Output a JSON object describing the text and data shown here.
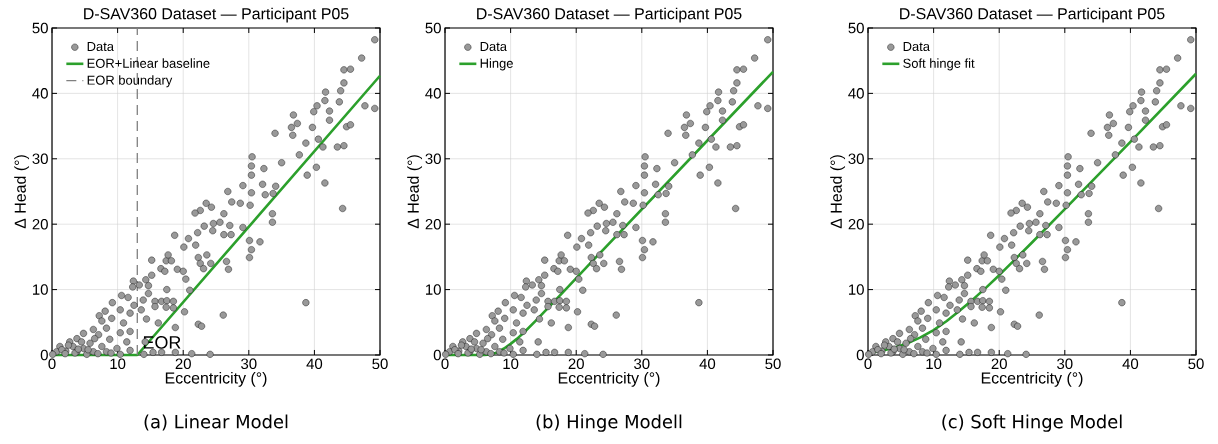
{
  "chart_data": [
    {
      "type": "scatter",
      "title": "D-SAV360 Dataset — Participant P05",
      "xlabel": "Eccentricity (°)",
      "ylabel": "Δ Head (°)",
      "xlim": [
        0,
        50
      ],
      "ylim": [
        0,
        50
      ],
      "xticks": [
        0,
        10,
        20,
        30,
        40,
        50
      ],
      "yticks": [
        0,
        10,
        20,
        30,
        40,
        50
      ],
      "grid": true,
      "legend": "top left",
      "annotations": [
        "(a) Linear Model",
        {
          "text": "EOR",
          "x": 13,
          "y": 0
        }
      ],
      "series": [
        {
          "name": "Data",
          "marker": "circle",
          "color": "#999999",
          "x": [
            49.2,
            47.2,
            44.5,
            45.5,
            44.5,
            41.7,
            44.0,
            41.6,
            43.8,
            40.4,
            39.9,
            42.3,
            47.7,
            49.2,
            36.8,
            37.4,
            36.5,
            39.7,
            42.3,
            44.9,
            45.5,
            34.0,
            36.7,
            40.6,
            38.7,
            41.3,
            43.5,
            44.5,
            37.7,
            30.5,
            30.4,
            32.3,
            35.0,
            30.4,
            40.3,
            38.9,
            41.6,
            32.1,
            29.1,
            34.1,
            26.8,
            30.4,
            32.5,
            33.7,
            27.4,
            28.7,
            23.5,
            24.3,
            30.2,
            44.3,
            22.6,
            21.8,
            26.2,
            33.6,
            33.6,
            24.6,
            23.2,
            25.6,
            27.1,
            24.5,
            22.2,
            26.2,
            27.3,
            29.1,
            18.7,
            20.8,
            30.1,
            31.7,
            21.9,
            20.1,
            30.4,
            30.1,
            23.6,
            22.3,
            15.2,
            17.4,
            17.7,
            18.2,
            22.6,
            24.2,
            26.6,
            23.1,
            26.9,
            16.6,
            19.1,
            20.0,
            17.2,
            15.2,
            20.4,
            12.4,
            14.3,
            13.3,
            14.7,
            12.3,
            21.0,
            17.5,
            14.7,
            10.6,
            11.6,
            9.2,
            13.9,
            15.7,
            16.7,
            17.5,
            18.5,
            12.5,
            15.7,
            17.4,
            18.5,
            38.7,
            8.1,
            10.4,
            13.6,
            7.2,
            9.1,
            11.9,
            14.4,
            20.2,
            26.1,
            7.6,
            10.9,
            16.2,
            6.3,
            8.3,
            10.4,
            11.9,
            18.8,
            22.3,
            22.8,
            4.8,
            7.1,
            3.8,
            8.8,
            11.4,
            14.2,
            2.7,
            5.8,
            1.2,
            3.2,
            4.8,
            7.6,
            9.9,
            0.7,
            2.1,
            3.8,
            6.3,
            8.3,
            11.9,
            15.4,
            16.7,
            18.8,
            21.3,
            24.1,
            0.1,
            5.3,
            10.4,
            14.0,
            1.5,
            2.5,
            3.5,
            4.5,
            5.5,
            6.5,
            7.0,
            9.0,
            2.0,
            4.0
          ],
          "values": [
            48.2,
            45.4,
            43.6,
            43.7,
            41.6,
            40.2,
            40.4,
            38.9,
            38.7,
            38.1,
            37.2,
            37.3,
            38.1,
            37.7,
            36.7,
            35.4,
            34.8,
            34.8,
            35.9,
            34.9,
            35.2,
            33.9,
            33.6,
            33.0,
            32.4,
            31.8,
            31.8,
            32.0,
            30.6,
            30.3,
            28.9,
            28.5,
            29.4,
            27.5,
            28.7,
            27.5,
            26.3,
            26.1,
            25.9,
            25.8,
            25.0,
            24.8,
            24.5,
            24.7,
            23.4,
            23.2,
            23.2,
            22.6,
            22.9,
            22.4,
            22.1,
            21.7,
            21.6,
            21.6,
            20.3,
            20.1,
            19.7,
            20.3,
            19.8,
            19.0,
            18.7,
            18.4,
            18.4,
            19.5,
            18.3,
            17.8,
            17.5,
            17.3,
            16.8,
            16.5,
            16.1,
            14.9,
            15.3,
            14.9,
            14.5,
            14.4,
            15.3,
            14.4,
            14.0,
            14.0,
            14.3,
            13.2,
            13.1,
            13.2,
            13.1,
            12.8,
            12.8,
            12.2,
            11.6,
            11.3,
            11.5,
            10.7,
            10.6,
            10.4,
            9.9,
            10.0,
            9.4,
            9.1,
            8.8,
            8.0,
            8.4,
            8.2,
            8.2,
            8.3,
            8.2,
            7.6,
            7.4,
            7.3,
            7.2,
            8.0,
            6.7,
            6.9,
            6.9,
            6.0,
            5.6,
            6.4,
            5.5,
            6.6,
            6.1,
            5.2,
            4.9,
            4.9,
            3.9,
            4.1,
            3.4,
            3.6,
            4.2,
            4.7,
            4.4,
            3.3,
            3.1,
            2.5,
            2.4,
            2.0,
            2.0,
            2.0,
            1.8,
            1.3,
            1.3,
            1.0,
            1.3,
            1.0,
            0.5,
            0.6,
            0.5,
            0.5,
            0.5,
            0.7,
            0.4,
            0.4,
            0.4,
            0.2,
            0.1,
            0.1,
            0.1,
            0.1,
            0.1,
            0.8,
            1.5,
            0.3,
            2.0,
            0.8,
            2.5,
            0.2,
            0.3,
            0.2,
            0.9
          ]
        },
        {
          "name": "EOR+Linear baseline",
          "type": "line",
          "color": "#2ca02c",
          "x": [
            0,
            13,
            50
          ],
          "values": [
            0,
            0,
            42.7
          ]
        },
        {
          "name": "EOR boundary",
          "type": "line",
          "line_style": "dashed",
          "color": "#808080",
          "x": [
            13,
            13
          ],
          "values": [
            0,
            50
          ]
        }
      ]
    },
    {
      "type": "scatter",
      "title": "D-SAV360 Dataset — Participant P05",
      "xlabel": "Eccentricity (°)",
      "ylabel": "Δ Head (°)",
      "xlim": [
        0,
        50
      ],
      "ylim": [
        0,
        50
      ],
      "xticks": [
        0,
        10,
        20,
        30,
        40,
        50
      ],
      "yticks": [
        0,
        10,
        20,
        30,
        40,
        50
      ],
      "grid": true,
      "legend": "top left",
      "annotations": [
        "(b) Hinge Modell"
      ],
      "series": [
        {
          "name": "Data",
          "marker": "circle",
          "color": "#999999",
          "x": [
            49.2,
            47.2,
            44.5,
            45.5,
            44.5,
            41.7,
            44.0,
            41.6,
            43.8,
            40.4,
            39.9,
            42.3,
            47.7,
            49.2,
            36.8,
            37.4,
            36.5,
            39.7,
            42.3,
            44.9,
            45.5,
            34.0,
            36.7,
            40.6,
            38.7,
            41.3,
            43.5,
            44.5,
            37.7,
            30.5,
            30.4,
            32.3,
            35.0,
            30.4,
            40.3,
            38.9,
            41.6,
            32.1,
            29.1,
            34.1,
            26.8,
            30.4,
            32.5,
            33.7,
            27.4,
            28.7,
            23.5,
            24.3,
            30.2,
            44.3,
            22.6,
            21.8,
            26.2,
            33.6,
            33.6,
            24.6,
            23.2,
            25.6,
            27.1,
            24.5,
            22.2,
            26.2,
            27.3,
            29.1,
            18.7,
            20.8,
            30.1,
            31.7,
            21.9,
            20.1,
            30.4,
            30.1,
            23.6,
            22.3,
            15.2,
            17.4,
            17.7,
            18.2,
            22.6,
            24.2,
            26.6,
            23.1,
            26.9,
            16.6,
            19.1,
            20.0,
            17.2,
            15.2,
            20.4,
            12.4,
            14.3,
            13.3,
            14.7,
            12.3,
            21.0,
            17.5,
            14.7,
            10.6,
            11.6,
            9.2,
            13.9,
            15.7,
            16.7,
            17.5,
            18.5,
            12.5,
            15.7,
            17.4,
            18.5,
            38.7,
            8.1,
            10.4,
            13.6,
            7.2,
            9.1,
            11.9,
            14.4,
            20.2,
            26.1,
            7.6,
            10.9,
            16.2,
            6.3,
            8.3,
            10.4,
            11.9,
            18.8,
            22.3,
            22.8,
            4.8,
            7.1,
            3.8,
            8.8,
            11.4,
            14.2,
            2.7,
            5.8,
            1.2,
            3.2,
            4.8,
            7.6,
            9.9,
            0.7,
            2.1,
            3.8,
            6.3,
            8.3,
            11.9,
            15.4,
            16.7,
            18.8,
            21.3,
            24.1,
            0.1,
            5.3,
            10.4,
            14.0,
            1.5,
            2.5,
            3.5,
            4.5,
            5.5,
            6.5,
            7.0,
            9.0,
            2.0,
            4.0
          ],
          "values": [
            48.2,
            45.4,
            43.6,
            43.7,
            41.6,
            40.2,
            40.4,
            38.9,
            38.7,
            38.1,
            37.2,
            37.3,
            38.1,
            37.7,
            36.7,
            35.4,
            34.8,
            34.8,
            35.9,
            34.9,
            35.2,
            33.9,
            33.6,
            33.0,
            32.4,
            31.8,
            31.8,
            32.0,
            30.6,
            30.3,
            28.9,
            28.5,
            29.4,
            27.5,
            28.7,
            27.5,
            26.3,
            26.1,
            25.9,
            25.8,
            25.0,
            24.8,
            24.5,
            24.7,
            23.4,
            23.2,
            23.2,
            22.6,
            22.9,
            22.4,
            22.1,
            21.7,
            21.6,
            21.6,
            20.3,
            20.1,
            19.7,
            20.3,
            19.8,
            19.0,
            18.7,
            18.4,
            18.4,
            19.5,
            18.3,
            17.8,
            17.5,
            17.3,
            16.8,
            16.5,
            16.1,
            14.9,
            15.3,
            14.9,
            14.5,
            14.4,
            15.3,
            14.4,
            14.0,
            14.0,
            14.3,
            13.2,
            13.1,
            13.2,
            13.1,
            12.8,
            12.8,
            12.2,
            11.6,
            11.3,
            11.5,
            10.7,
            10.6,
            10.4,
            9.9,
            10.0,
            9.4,
            9.1,
            8.8,
            8.0,
            8.4,
            8.2,
            8.2,
            8.3,
            8.2,
            7.6,
            7.4,
            7.3,
            7.2,
            8.0,
            6.7,
            6.9,
            6.9,
            6.0,
            5.6,
            6.4,
            5.5,
            6.6,
            6.1,
            5.2,
            4.9,
            4.9,
            3.9,
            4.1,
            3.4,
            3.6,
            4.2,
            4.7,
            4.4,
            3.3,
            3.1,
            2.5,
            2.4,
            2.0,
            2.0,
            2.0,
            1.8,
            1.3,
            1.3,
            1.0,
            1.3,
            1.0,
            0.5,
            0.6,
            0.5,
            0.5,
            0.5,
            0.7,
            0.4,
            0.4,
            0.4,
            0.2,
            0.1,
            0.1,
            0.1,
            0.1,
            0.1,
            0.8,
            1.5,
            0.3,
            2.0,
            0.8,
            2.5,
            0.2,
            0.3,
            0.2,
            0.9
          ]
        },
        {
          "name": "Hinge",
          "type": "line",
          "color": "#2ca02c",
          "x": [
            0,
            6,
            7,
            8,
            9,
            10,
            11,
            12,
            14,
            18,
            22.6,
            50
          ],
          "values": [
            0,
            0,
            0.1,
            0.4,
            1.0,
            1.7,
            2.5,
            3.4,
            5.4,
            9.6,
            14.5,
            43.3
          ]
        }
      ]
    },
    {
      "type": "scatter",
      "title": "D-SAV360 Dataset — Participant P05",
      "xlabel": "Eccentricity (°)",
      "ylabel": "Δ Head (°)",
      "xlim": [
        0,
        50
      ],
      "ylim": [
        0,
        50
      ],
      "xticks": [
        0,
        10,
        20,
        30,
        40,
        50
      ],
      "yticks": [
        0,
        10,
        20,
        30,
        40,
        50
      ],
      "grid": true,
      "legend": "top left",
      "annotations": [
        "(c) Soft Hinge Model"
      ],
      "series": [
        {
          "name": "Data",
          "marker": "circle",
          "color": "#999999",
          "x": [
            49.2,
            47.2,
            44.5,
            45.5,
            44.5,
            41.7,
            44.0,
            41.6,
            43.8,
            40.4,
            39.9,
            42.3,
            47.7,
            49.2,
            36.8,
            37.4,
            36.5,
            39.7,
            42.3,
            44.9,
            45.5,
            34.0,
            36.7,
            40.6,
            38.7,
            41.3,
            43.5,
            44.5,
            37.7,
            30.5,
            30.4,
            32.3,
            35.0,
            30.4,
            40.3,
            38.9,
            41.6,
            32.1,
            29.1,
            34.1,
            26.8,
            30.4,
            32.5,
            33.7,
            27.4,
            28.7,
            23.5,
            24.3,
            30.2,
            44.3,
            22.6,
            21.8,
            26.2,
            33.6,
            33.6,
            24.6,
            23.2,
            25.6,
            27.1,
            24.5,
            22.2,
            26.2,
            27.3,
            29.1,
            18.7,
            20.8,
            30.1,
            31.7,
            21.9,
            20.1,
            30.4,
            30.1,
            23.6,
            22.3,
            15.2,
            17.4,
            17.7,
            18.2,
            22.6,
            24.2,
            26.6,
            23.1,
            26.9,
            16.6,
            19.1,
            20.0,
            17.2,
            15.2,
            20.4,
            12.4,
            14.3,
            13.3,
            14.7,
            12.3,
            21.0,
            17.5,
            14.7,
            10.6,
            11.6,
            9.2,
            13.9,
            15.7,
            16.7,
            17.5,
            18.5,
            12.5,
            15.7,
            17.4,
            18.5,
            38.7,
            8.1,
            10.4,
            13.6,
            7.2,
            9.1,
            11.9,
            14.4,
            20.2,
            26.1,
            7.6,
            10.9,
            16.2,
            6.3,
            8.3,
            10.4,
            11.9,
            18.8,
            22.3,
            22.8,
            4.8,
            7.1,
            3.8,
            8.8,
            11.4,
            14.2,
            2.7,
            5.8,
            1.2,
            3.2,
            4.8,
            7.6,
            9.9,
            0.7,
            2.1,
            3.8,
            6.3,
            8.3,
            11.9,
            15.4,
            16.7,
            18.8,
            21.3,
            24.1,
            0.1,
            5.3,
            10.4,
            14.0,
            1.5,
            2.5,
            3.5,
            4.5,
            5.5,
            6.5,
            7.0,
            9.0,
            2.0,
            4.0
          ],
          "values": [
            48.2,
            45.4,
            43.6,
            43.7,
            41.6,
            40.2,
            40.4,
            38.9,
            38.7,
            38.1,
            37.2,
            37.3,
            38.1,
            37.7,
            36.7,
            35.4,
            34.8,
            34.8,
            35.9,
            34.9,
            35.2,
            33.9,
            33.6,
            33.0,
            32.4,
            31.8,
            31.8,
            32.0,
            30.6,
            30.3,
            28.9,
            28.5,
            29.4,
            27.5,
            28.7,
            27.5,
            26.3,
            26.1,
            25.9,
            25.8,
            25.0,
            24.8,
            24.5,
            24.7,
            23.4,
            23.2,
            23.2,
            22.6,
            22.9,
            22.4,
            22.1,
            21.7,
            21.6,
            21.6,
            20.3,
            20.1,
            19.7,
            20.3,
            19.8,
            19.0,
            18.7,
            18.4,
            18.4,
            19.5,
            18.3,
            17.8,
            17.5,
            17.3,
            16.8,
            16.5,
            16.1,
            14.9,
            15.3,
            14.9,
            14.5,
            14.4,
            15.3,
            14.4,
            14.0,
            14.0,
            14.3,
            13.2,
            13.1,
            13.2,
            13.1,
            12.8,
            12.8,
            12.2,
            11.6,
            11.3,
            11.5,
            10.7,
            10.6,
            10.4,
            9.9,
            10.0,
            9.4,
            9.1,
            8.8,
            8.0,
            8.4,
            8.2,
            8.2,
            8.3,
            8.2,
            7.6,
            7.4,
            7.3,
            7.2,
            8.0,
            6.7,
            6.9,
            6.9,
            6.0,
            5.6,
            6.4,
            5.5,
            6.6,
            6.1,
            5.2,
            4.9,
            4.9,
            3.9,
            4.1,
            3.4,
            3.6,
            4.2,
            4.7,
            4.4,
            3.3,
            3.1,
            2.5,
            2.4,
            2.0,
            2.0,
            2.0,
            1.8,
            1.3,
            1.3,
            1.0,
            1.3,
            1.0,
            0.5,
            0.6,
            0.5,
            0.5,
            0.5,
            0.7,
            0.4,
            0.4,
            0.4,
            0.2,
            0.1,
            0.1,
            0.1,
            0.1,
            0.1,
            0.8,
            1.5,
            0.3,
            2.0,
            0.8,
            2.5,
            0.2,
            0.3,
            0.2,
            0.9
          ]
        },
        {
          "name": "Soft hinge fit",
          "type": "line",
          "color": "#2ca02c",
          "x": [
            0,
            2,
            4,
            6,
            8,
            10,
            12,
            14,
            16,
            18,
            20,
            25,
            30,
            40,
            50
          ],
          "values": [
            0.3,
            0.6,
            1.1,
            1.8,
            2.7,
            3.8,
            5.2,
            6.8,
            8.5,
            10.3,
            12.2,
            17.2,
            22.3,
            32.6,
            43.0
          ]
        }
      ]
    }
  ]
}
